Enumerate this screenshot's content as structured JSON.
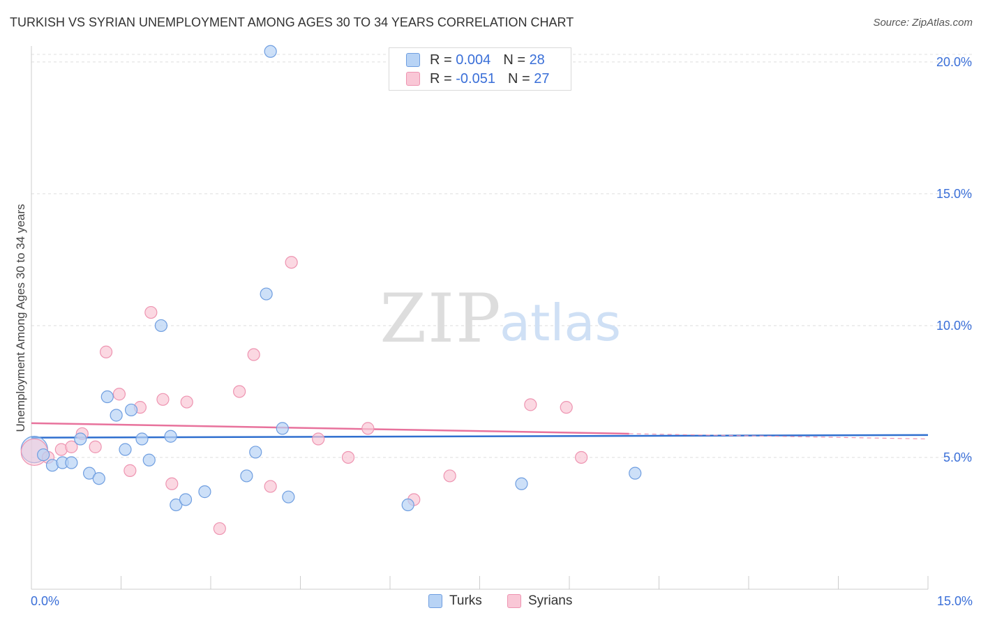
{
  "header": {
    "title": "TURKISH VS SYRIAN UNEMPLOYMENT AMONG AGES 30 TO 34 YEARS CORRELATION CHART",
    "source": "Source: ZipAtlas.com"
  },
  "watermark": {
    "zip": "ZIP",
    "atlas": "atlas"
  },
  "legend": {
    "r_label": "R =",
    "n_label": "N =",
    "turks": {
      "r": "0.004",
      "n": "28"
    },
    "syrians": {
      "r": "-0.051",
      "n": "27"
    }
  },
  "colors": {
    "turks_fill": "#b8d3f5",
    "turks_stroke": "#6f9ee0",
    "turks_line": "#2f6fcf",
    "syrians_fill": "#f9c7d6",
    "syrians_stroke": "#ee94b1",
    "syrians_line": "#e8729c",
    "tick_label": "#3a6fd8"
  },
  "chart_data": {
    "type": "scatter",
    "title": "TURKISH VS SYRIAN UNEMPLOYMENT AMONG AGES 30 TO 34 YEARS CORRELATION CHART",
    "xlabel": "",
    "ylabel": "Unemployment Among Ages 30 to 34 years",
    "xlim": [
      0,
      15
    ],
    "ylim": [
      0,
      20.5
    ],
    "x_tick_labels": [
      {
        "value": 0,
        "label": "0.0%"
      },
      {
        "value": 15,
        "label": "15.0%"
      }
    ],
    "y_ticks": [
      {
        "value": 5,
        "label": "5.0%"
      },
      {
        "value": 10,
        "label": "10.0%"
      },
      {
        "value": 15,
        "label": "15.0%"
      },
      {
        "value": 20,
        "label": "20.0%"
      }
    ],
    "grid": "horizontal-dashed",
    "legend_position": "top-center",
    "series": [
      {
        "name": "Turks",
        "color": "#6f9ee0",
        "trend": {
          "x": [
            0,
            15
          ],
          "y": [
            5.75,
            5.85
          ]
        },
        "points": [
          {
            "x": 0.05,
            "y": 5.3,
            "big": true
          },
          {
            "x": 0.2,
            "y": 5.1
          },
          {
            "x": 0.35,
            "y": 4.7
          },
          {
            "x": 0.52,
            "y": 4.8
          },
          {
            "x": 0.67,
            "y": 4.8
          },
          {
            "x": 0.82,
            "y": 5.7
          },
          {
            "x": 0.97,
            "y": 4.4
          },
          {
            "x": 1.13,
            "y": 4.2
          },
          {
            "x": 1.27,
            "y": 7.3
          },
          {
            "x": 1.42,
            "y": 6.6
          },
          {
            "x": 1.57,
            "y": 5.3
          },
          {
            "x": 1.67,
            "y": 6.8
          },
          {
            "x": 1.85,
            "y": 5.7
          },
          {
            "x": 1.97,
            "y": 4.9
          },
          {
            "x": 2.17,
            "y": 10.0
          },
          {
            "x": 2.33,
            "y": 5.8
          },
          {
            "x": 2.42,
            "y": 3.2
          },
          {
            "x": 2.58,
            "y": 3.4
          },
          {
            "x": 2.9,
            "y": 3.7
          },
          {
            "x": 3.6,
            "y": 4.3
          },
          {
            "x": 3.75,
            "y": 5.2
          },
          {
            "x": 3.93,
            "y": 11.2
          },
          {
            "x": 4.0,
            "y": 20.4
          },
          {
            "x": 4.2,
            "y": 6.1
          },
          {
            "x": 4.3,
            "y": 3.5
          },
          {
            "x": 6.3,
            "y": 3.2
          },
          {
            "x": 8.2,
            "y": 4.0
          },
          {
            "x": 10.1,
            "y": 4.4
          }
        ]
      },
      {
        "name": "Syrians",
        "color": "#ee94b1",
        "trend": {
          "x": [
            0,
            10.0
          ],
          "y": [
            6.3,
            5.9
          ]
        },
        "trend_ext": {
          "x": [
            10.0,
            15
          ],
          "y": [
            5.9,
            5.7
          ]
        },
        "points": [
          {
            "x": 0.05,
            "y": 5.2,
            "big": true
          },
          {
            "x": 0.28,
            "y": 5.0
          },
          {
            "x": 0.5,
            "y": 5.3
          },
          {
            "x": 0.67,
            "y": 5.4
          },
          {
            "x": 0.85,
            "y": 5.9
          },
          {
            "x": 1.07,
            "y": 5.4
          },
          {
            "x": 1.25,
            "y": 9.0
          },
          {
            "x": 1.47,
            "y": 7.4
          },
          {
            "x": 1.65,
            "y": 4.5
          },
          {
            "x": 1.82,
            "y": 6.9
          },
          {
            "x": 2.0,
            "y": 10.5
          },
          {
            "x": 2.2,
            "y": 7.2
          },
          {
            "x": 2.35,
            "y": 4.0
          },
          {
            "x": 2.6,
            "y": 7.1
          },
          {
            "x": 3.15,
            "y": 2.3
          },
          {
            "x": 3.48,
            "y": 7.5
          },
          {
            "x": 3.72,
            "y": 8.9
          },
          {
            "x": 4.0,
            "y": 3.9
          },
          {
            "x": 4.35,
            "y": 12.4
          },
          {
            "x": 4.8,
            "y": 5.7
          },
          {
            "x": 5.3,
            "y": 5.0
          },
          {
            "x": 5.63,
            "y": 6.1
          },
          {
            "x": 6.4,
            "y": 3.4
          },
          {
            "x": 7.0,
            "y": 4.3
          },
          {
            "x": 8.35,
            "y": 7.0
          },
          {
            "x": 8.95,
            "y": 6.9
          },
          {
            "x": 9.2,
            "y": 5.0
          }
        ]
      }
    ]
  }
}
